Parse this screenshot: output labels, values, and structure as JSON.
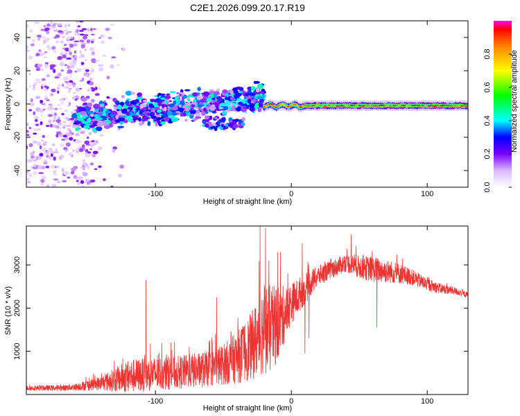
{
  "title": "C2E1.2026.099.20.17.R19",
  "chart_data": [
    {
      "type": "heatmap",
      "xlabel": "Height of straight line (km)",
      "ylabel": "Frequency (Hz)",
      "xlim": [
        -195,
        130
      ],
      "ylim": [
        -50,
        50
      ],
      "xticks": [
        -100,
        0,
        100
      ],
      "yticks": [
        -40,
        -20,
        0,
        20,
        40
      ],
      "xtick_labels": [
        "-100",
        "0",
        "100"
      ],
      "ytick_labels": [
        "-40",
        "-20",
        "0",
        "20",
        "40"
      ],
      "regions": [
        {
          "name": "noise",
          "x": [
            -195,
            -145
          ],
          "freq": [
            -50,
            50
          ],
          "amplitude": [
            0.0,
            0.15
          ]
        },
        {
          "name": "scattered echo",
          "x": [
            -160,
            -20
          ],
          "freq_center_start": -8,
          "freq_center_end": 4,
          "spread_hz": 8,
          "amplitude": [
            0.1,
            0.45
          ]
        },
        {
          "name": "branch",
          "x": [
            -65,
            -35
          ],
          "freq": [
            -15,
            -8
          ],
          "amplitude": [
            0.1,
            0.4
          ]
        },
        {
          "name": "strong echo",
          "x": [
            -20,
            130
          ],
          "freq_center": -1,
          "spread_hz": 3,
          "amplitude": [
            0.4,
            1.0
          ]
        }
      ],
      "colorbar": {
        "label": "Normalized spectral amplitude",
        "range": [
          0,
          1
        ],
        "ticks": [
          0.0,
          0.2,
          0.4,
          0.6,
          0.8
        ],
        "tick_labels": [
          "0.0",
          "0.2",
          "0.4",
          "0.6",
          "0.8"
        ],
        "stops": [
          {
            "v": 0.0,
            "color": "#ffffff"
          },
          {
            "v": 0.1,
            "color": "#d9b8ff"
          },
          {
            "v": 0.2,
            "color": "#7a00ff"
          },
          {
            "v": 0.3,
            "color": "#0000ff"
          },
          {
            "v": 0.4,
            "color": "#00ffff"
          },
          {
            "v": 0.55,
            "color": "#00ff00"
          },
          {
            "v": 0.7,
            "color": "#ffff00"
          },
          {
            "v": 0.85,
            "color": "#ff8000"
          },
          {
            "v": 0.95,
            "color": "#ff0000"
          },
          {
            "v": 1.0,
            "color": "#ff00ff"
          }
        ]
      }
    },
    {
      "type": "line",
      "xlabel": "Height of straight line (km)",
      "ylabel": "SNR (10 * v/v)",
      "xlim": [
        -195,
        130
      ],
      "ylim": [
        0,
        3900
      ],
      "xticks": [
        -100,
        0,
        100
      ],
      "yticks": [
        1000,
        2000,
        3000
      ],
      "xtick_labels": [
        "-100",
        "0",
        "100"
      ],
      "ytick_labels": [
        "1000",
        "2000",
        "3000"
      ],
      "color": "#ee3333",
      "envelope": {
        "x": [
          -195,
          -170,
          -160,
          -140,
          -120,
          -100,
          -80,
          -60,
          -50,
          -40,
          -30,
          -25,
          -20,
          -15,
          -10,
          -5,
          0,
          10,
          20,
          30,
          40,
          50,
          60,
          70,
          80,
          90,
          100,
          110,
          120,
          130
        ],
        "base": [
          150,
          150,
          170,
          260,
          420,
          480,
          520,
          600,
          700,
          850,
          1100,
          1300,
          1550,
          1500,
          1650,
          1850,
          2100,
          2450,
          2750,
          2900,
          3050,
          2950,
          2900,
          2850,
          2800,
          2700,
          2550,
          2450,
          2400,
          2300
        ],
        "spread": [
          100,
          110,
          130,
          280,
          650,
          650,
          650,
          700,
          800,
          1000,
          1300,
          1500,
          1800,
          1700,
          1500,
          1100,
          800,
          600,
          400,
          350,
          350,
          450,
          500,
          450,
          400,
          300,
          250,
          200,
          150,
          120
        ]
      },
      "spikes": [
        {
          "x": -107,
          "y": 2650
        },
        {
          "x": -55,
          "y": 2250
        },
        {
          "x": -23,
          "y": 3900
        },
        {
          "x": -19,
          "y": 3850
        },
        {
          "x": -8,
          "y": 3300
        },
        {
          "x": 8,
          "y": 3500
        },
        {
          "x": 10,
          "y": 950
        },
        {
          "x": 13,
          "y": 1300
        },
        {
          "x": 44,
          "y": 3700
        },
        {
          "x": 63,
          "y": 1550
        }
      ]
    }
  ]
}
